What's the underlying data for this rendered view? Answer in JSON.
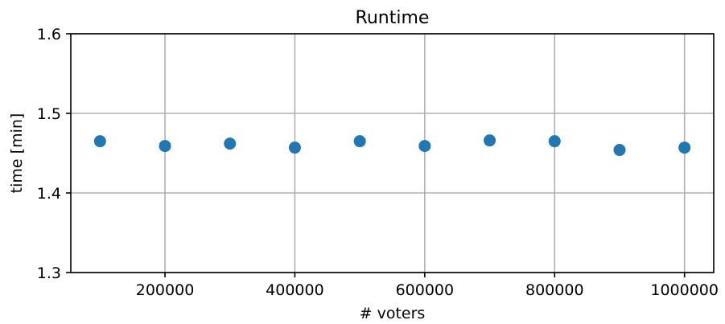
{
  "chart_data": {
    "type": "scatter",
    "title": "Runtime",
    "xlabel": "# voters",
    "ylabel": "time [min]",
    "xlim": [
      55000,
      1045000
    ],
    "ylim": [
      1.3,
      1.6
    ],
    "x_ticks": [
      200000,
      400000,
      600000,
      800000,
      1000000
    ],
    "x_tick_labels": [
      "200000",
      "400000",
      "600000",
      "800000",
      "1000000"
    ],
    "y_ticks": [
      1.3,
      1.4,
      1.5,
      1.6
    ],
    "y_tick_labels": [
      "1.3",
      "1.4",
      "1.5",
      "1.6"
    ],
    "grid": true,
    "series": [
      {
        "color": "#1f77b4",
        "x": [
          100000,
          200000,
          300000,
          400000,
          500000,
          600000,
          700000,
          800000,
          900000,
          1000000
        ],
        "y": [
          1.465,
          1.459,
          1.462,
          1.457,
          1.465,
          1.459,
          1.466,
          1.465,
          1.454,
          1.457
        ]
      }
    ]
  }
}
